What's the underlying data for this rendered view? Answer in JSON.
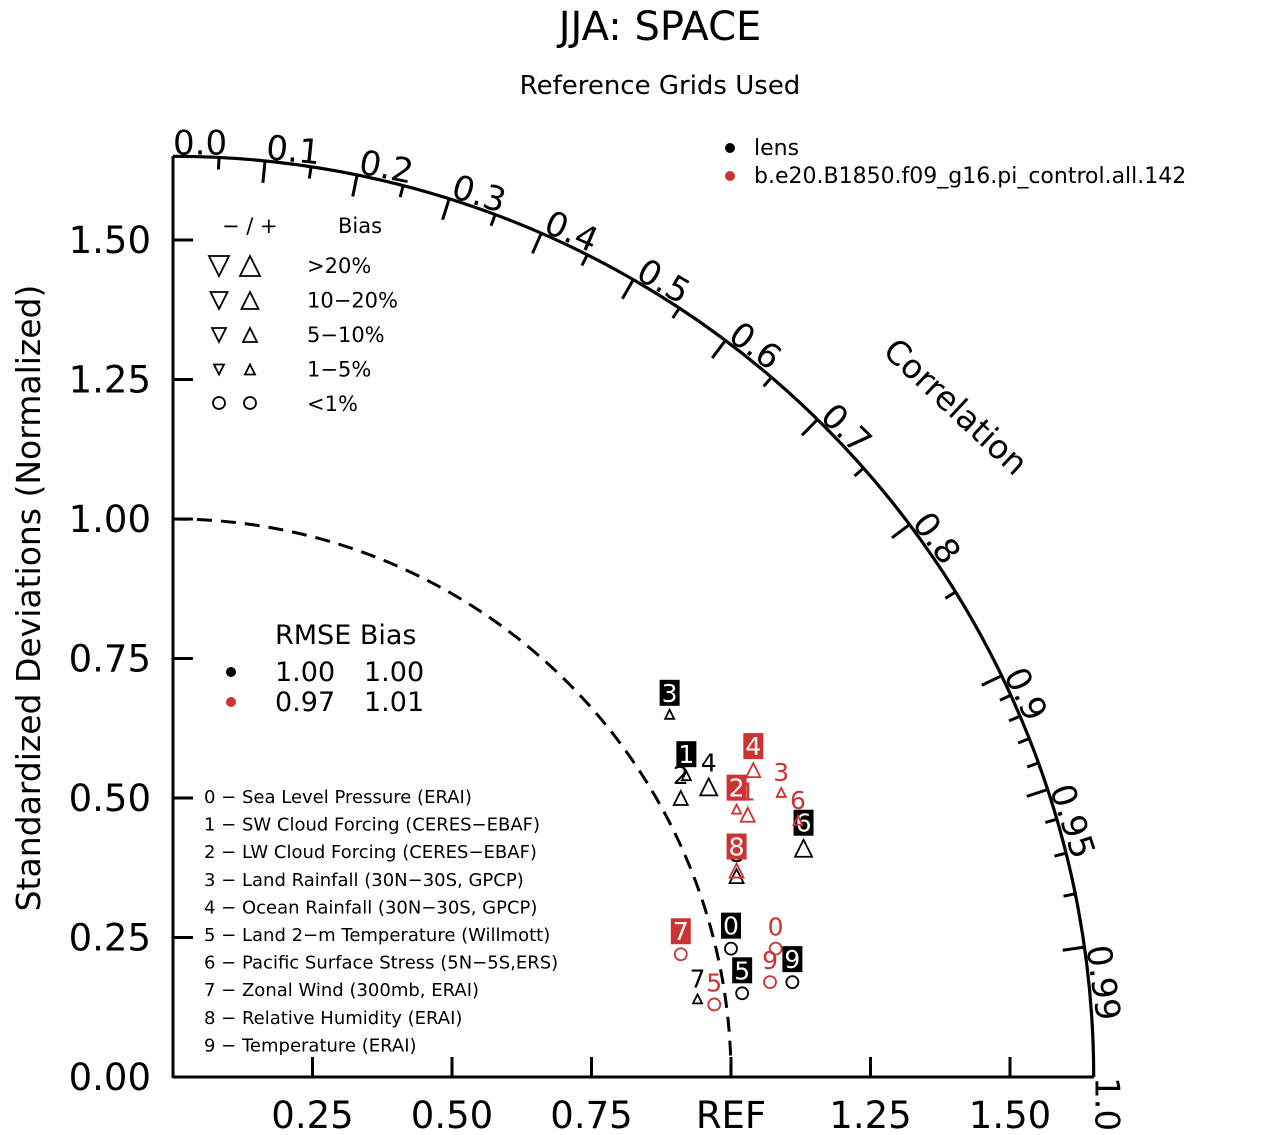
{
  "chart_data": {
    "type": "scatter",
    "subtype": "taylor-diagram",
    "title": "JJA: SPACE",
    "subtitle": "Reference Grids Used",
    "ylabel": "Standardized Deviations (Normalized)",
    "corr_label": "Correlation",
    "ref_label": "REF",
    "std_range": [
      0,
      1.65
    ],
    "y_ticks": [
      "0.00",
      "0.25",
      "0.50",
      "0.75",
      "1.00",
      "1.25",
      "1.50"
    ],
    "x_ticks": [
      {
        "value": 0.25,
        "label": "0.25"
      },
      {
        "value": 0.5,
        "label": "0.50"
      },
      {
        "value": 0.75,
        "label": "0.75"
      },
      {
        "value": 1.25,
        "label": "1.25"
      },
      {
        "value": 1.5,
        "label": "1.50"
      }
    ],
    "corr_ticks": [
      {
        "value": 0.0,
        "label": "0.0"
      },
      {
        "value": 0.1,
        "label": "0.1"
      },
      {
        "value": 0.2,
        "label": "0.2"
      },
      {
        "value": 0.3,
        "label": "0.3"
      },
      {
        "value": 0.4,
        "label": "0.4"
      },
      {
        "value": 0.5,
        "label": "0.5"
      },
      {
        "value": 0.6,
        "label": "0.6"
      },
      {
        "value": 0.7,
        "label": "0.7"
      },
      {
        "value": 0.8,
        "label": "0.8"
      },
      {
        "value": 0.9,
        "label": "0.9"
      },
      {
        "value": 0.95,
        "label": "0.95"
      },
      {
        "value": 0.99,
        "label": "0.99"
      },
      {
        "value": 1.0,
        "label": "1.0"
      }
    ],
    "series": [
      {
        "name": "lens",
        "color": "#000000",
        "rmse": "1.00",
        "bias": "1.00",
        "points": [
          {
            "id": "0",
            "x": 1.0,
            "y": 0.23,
            "bias_class": "<1%",
            "boxed": true
          },
          {
            "id": "1",
            "x": 0.92,
            "y": 0.54,
            "bias_class": "1-5%",
            "boxed": true
          },
          {
            "id": "2",
            "x": 0.91,
            "y": 0.5,
            "bias_class": "5-10%",
            "boxed": false
          },
          {
            "id": "3",
            "x": 0.89,
            "y": 0.65,
            "bias_class": "1-5%",
            "boxed": true
          },
          {
            "id": "4",
            "x": 0.96,
            "y": 0.52,
            "bias_class": "10-20%",
            "boxed": false
          },
          {
            "id": "5",
            "x": 1.02,
            "y": 0.15,
            "bias_class": "<1%",
            "boxed": true
          },
          {
            "id": "6",
            "x": 1.13,
            "y": 0.41,
            "bias_class": "10-20%",
            "boxed": true
          },
          {
            "id": "7",
            "x": 0.94,
            "y": 0.14,
            "bias_class": "1-5%",
            "boxed": false
          },
          {
            "id": "8",
            "x": 1.01,
            "y": 0.36,
            "bias_class": "5-10%",
            "boxed": false
          },
          {
            "id": "9",
            "x": 1.11,
            "y": 0.17,
            "bias_class": "<1%",
            "boxed": true
          }
        ]
      },
      {
        "name": "b.e20.B1850.f09_g16.pi_control.all.142",
        "color": "#cc3333",
        "rmse": "0.97",
        "bias": "1.01",
        "points": [
          {
            "id": "0",
            "x": 1.08,
            "y": 0.23,
            "bias_class": "<1%",
            "boxed": false
          },
          {
            "id": "1",
            "x": 1.03,
            "y": 0.47,
            "bias_class": "5-10%",
            "boxed": false
          },
          {
            "id": "2",
            "x": 1.01,
            "y": 0.48,
            "bias_class": "1-5%",
            "boxed": true
          },
          {
            "id": "3",
            "x": 1.09,
            "y": 0.51,
            "bias_class": "1-5%",
            "boxed": false
          },
          {
            "id": "4",
            "x": 1.04,
            "y": 0.55,
            "bias_class": "5-10%",
            "boxed": true
          },
          {
            "id": "5",
            "x": 0.97,
            "y": 0.13,
            "bias_class": "<1%",
            "boxed": false
          },
          {
            "id": "6",
            "x": 1.12,
            "y": 0.46,
            "bias_class": "1-5%",
            "boxed": false
          },
          {
            "id": "7",
            "x": 0.91,
            "y": 0.22,
            "bias_class": "<1%",
            "boxed": true
          },
          {
            "id": "8",
            "x": 1.01,
            "y": 0.37,
            "bias_class": "5-10%",
            "boxed": true
          },
          {
            "id": "9",
            "x": 1.07,
            "y": 0.17,
            "bias_class": "<1%",
            "boxed": false
          }
        ]
      }
    ],
    "bias_legend": {
      "header_sign": "−  /  +",
      "header_bias": "Bias",
      "rows": [
        {
          "label": ">20%",
          "size": "xl"
        },
        {
          "label": "10−20%",
          "size": "l"
        },
        {
          "label": "5−10%",
          "size": "m"
        },
        {
          "label": "1−5%",
          "size": "s"
        },
        {
          "label": "<1%",
          "size": "circle"
        }
      ]
    },
    "stats_legend": {
      "header": "RMSE Bias"
    },
    "variables": [
      "0 − Sea Level Pressure (ERAI)",
      "1 − SW Cloud Forcing (CERES−EBAF)",
      "2 − LW Cloud Forcing (CERES−EBAF)",
      "3 − Land Rainfall (30N−30S, GPCP)",
      "4 − Ocean Rainfall (30N−30S, GPCP)",
      "5 − Land 2−m Temperature (Willmott)",
      "6 − Pacific Surface Stress (5N−5S,ERS)",
      "7 − Zonal Wind (300mb, ERAI)",
      "8 − Relative Humidity (ERAI)",
      "9 − Temperature (ERAI)"
    ]
  }
}
